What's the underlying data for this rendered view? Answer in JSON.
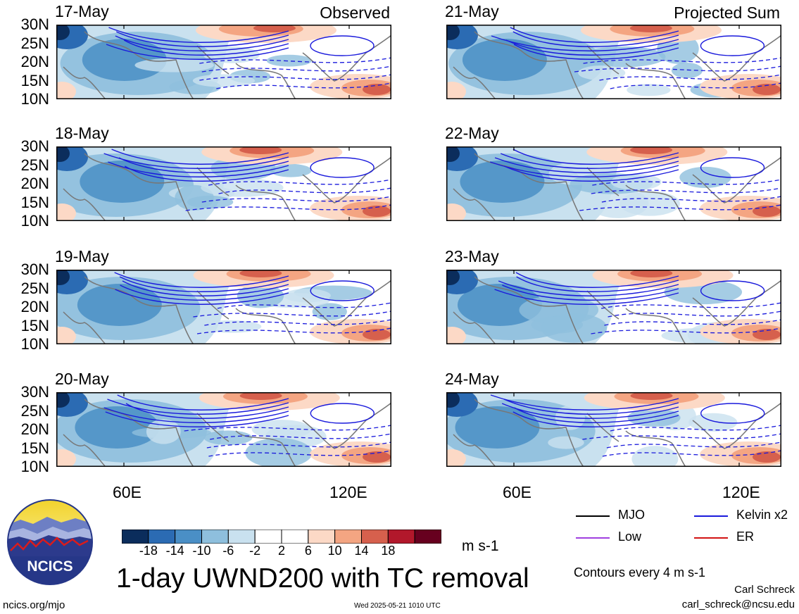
{
  "panels": [
    {
      "date": "17-May",
      "tag": "Observed",
      "col": 0,
      "row": 0
    },
    {
      "date": "18-May",
      "tag": "",
      "col": 0,
      "row": 1
    },
    {
      "date": "19-May",
      "tag": "",
      "col": 0,
      "row": 2
    },
    {
      "date": "20-May",
      "tag": "",
      "col": 0,
      "row": 3
    },
    {
      "date": "21-May",
      "tag": "Projected Sum",
      "col": 1,
      "row": 0
    },
    {
      "date": "22-May",
      "tag": "",
      "col": 1,
      "row": 1
    },
    {
      "date": "23-May",
      "tag": "",
      "col": 1,
      "row": 2
    },
    {
      "date": "24-May",
      "tag": "",
      "col": 1,
      "row": 3
    }
  ],
  "lat_labels": [
    "30N",
    "25N",
    "20N",
    "15N",
    "10N"
  ],
  "lon_labels": [
    "60E",
    "120E"
  ],
  "colorbar": {
    "colors": [
      "#0b2d5c",
      "#2b6bb3",
      "#4a8fc6",
      "#8ebfdd",
      "#c9e1ef",
      "#ffffff",
      "#ffffff",
      "#fcd9c6",
      "#f4a582",
      "#d6604d",
      "#b2182b",
      "#67001f"
    ],
    "labels": [
      "-18",
      "-14",
      "-10",
      "-6",
      "-2",
      "2",
      "6",
      "10",
      "14",
      "18"
    ],
    "units": "m s-1"
  },
  "legend": {
    "items": [
      {
        "label": "MJO",
        "color": "#000000"
      },
      {
        "label": "Kelvin x2",
        "color": "#1a1adc"
      },
      {
        "label": "Low",
        "color": "#a040e0"
      },
      {
        "label": "ER",
        "color": "#d21414"
      }
    ],
    "note": "Contours every 4 m s-1"
  },
  "logo": {
    "text": "NCICS"
  },
  "title": "1-day UWND200 with TC removal",
  "footer": {
    "left": "ncics.org/mjo",
    "center": "Wed 2025-05-21 1010 UTC",
    "author": "Carl Schreck",
    "email": "carl_schreck@ncsu.edu"
  }
}
